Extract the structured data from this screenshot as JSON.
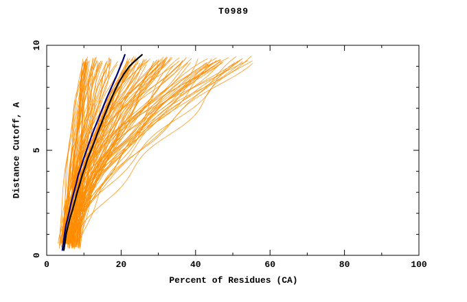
{
  "chart_data": {
    "type": "line",
    "title": "T0989",
    "xlabel": "Percent of Residues (CA)",
    "ylabel": "Distance Cutoff, A",
    "xlim": [
      0,
      100
    ],
    "ylim": [
      0,
      10
    ],
    "x_ticks": [
      0,
      20,
      40,
      60,
      80,
      100
    ],
    "x_minor_ticks": [
      10,
      30,
      50,
      70,
      90
    ],
    "y_ticks": [
      0,
      5,
      10
    ],
    "y_minor_ticks": [
      1,
      2,
      3,
      4,
      6,
      7,
      8,
      9
    ],
    "grid": false,
    "legend": "none",
    "frame_color": "#000000",
    "background": "#ffffff",
    "series": [
      {
        "name": "model-ensemble-orange",
        "style": "ensemble",
        "color": "#ff8c00",
        "count": 125,
        "line_width": 0.8,
        "start_x_range": [
          3.5,
          9.0
        ],
        "end_x_range": [
          10,
          57
        ],
        "end_bias": 1.5,
        "y_bottom": 0.3,
        "y_top": 9.55,
        "seed": 42
      },
      {
        "name": "highlighted-model-black",
        "style": "line",
        "color": "#000000",
        "width": 2.2,
        "points": [
          [
            4.6,
            0.25
          ],
          [
            4.9,
            0.6
          ],
          [
            5.2,
            1.0
          ],
          [
            5.8,
            1.45
          ],
          [
            6.3,
            1.8
          ],
          [
            7.0,
            2.2
          ],
          [
            7.6,
            2.6
          ],
          [
            8.2,
            3.0
          ],
          [
            8.9,
            3.4
          ],
          [
            9.6,
            3.85
          ],
          [
            10.3,
            4.2
          ],
          [
            11.0,
            4.6
          ],
          [
            11.9,
            5.0
          ],
          [
            12.8,
            5.4
          ],
          [
            13.6,
            5.8
          ],
          [
            14.5,
            6.2
          ],
          [
            15.4,
            6.6
          ],
          [
            16.3,
            7.0
          ],
          [
            17.2,
            7.4
          ],
          [
            18.2,
            7.8
          ],
          [
            19.3,
            8.2
          ],
          [
            20.6,
            8.6
          ],
          [
            22.2,
            9.0
          ],
          [
            24.0,
            9.3
          ],
          [
            25.6,
            9.55
          ]
        ]
      },
      {
        "name": "highlighted-model-navy",
        "style": "line",
        "color": "#000080",
        "width": 2.2,
        "points": [
          [
            4.2,
            0.25
          ],
          [
            4.5,
            0.6
          ],
          [
            4.8,
            1.0
          ],
          [
            5.2,
            1.45
          ],
          [
            5.7,
            1.8
          ],
          [
            6.2,
            2.2
          ],
          [
            6.7,
            2.6
          ],
          [
            7.3,
            3.0
          ],
          [
            7.9,
            3.4
          ],
          [
            8.5,
            3.85
          ],
          [
            9.2,
            4.2
          ],
          [
            9.9,
            4.6
          ],
          [
            10.7,
            5.0
          ],
          [
            11.5,
            5.4
          ],
          [
            12.3,
            5.8
          ],
          [
            13.2,
            6.2
          ],
          [
            14.1,
            6.6
          ],
          [
            15.0,
            7.0
          ],
          [
            15.9,
            7.4
          ],
          [
            16.9,
            7.8
          ],
          [
            17.9,
            8.2
          ],
          [
            18.9,
            8.6
          ],
          [
            19.8,
            9.0
          ],
          [
            20.5,
            9.3
          ],
          [
            21.0,
            9.55
          ]
        ]
      }
    ]
  }
}
